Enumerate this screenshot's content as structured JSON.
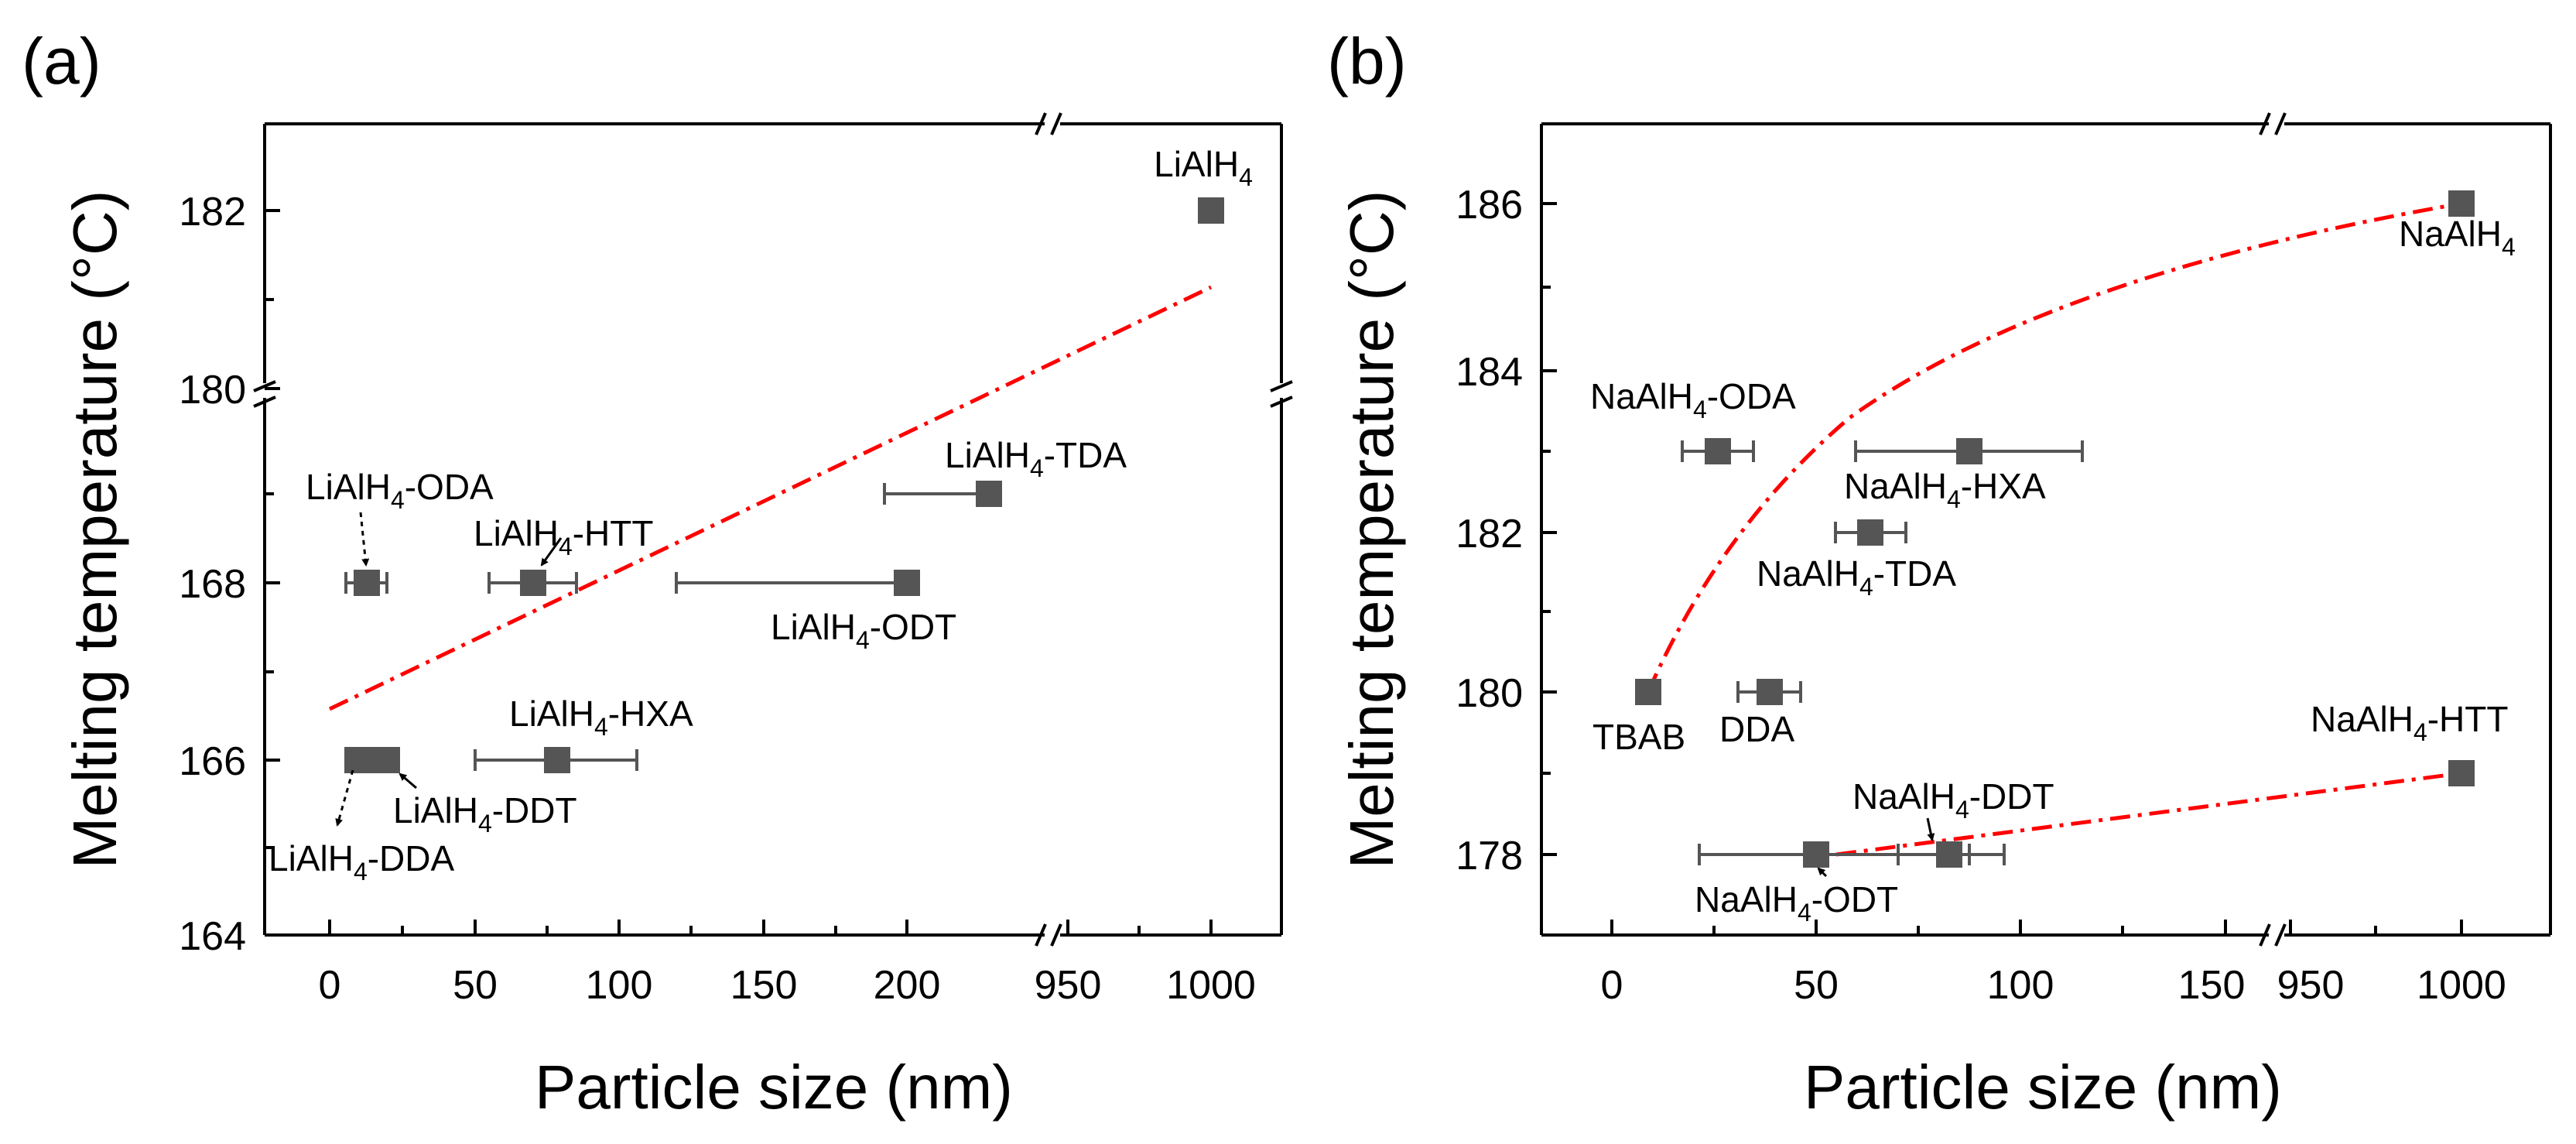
{
  "chart_data": [
    {
      "type": "scatter",
      "panel": "(a)",
      "xlabel": "Particle size (nm)",
      "ylabel": "Melting temperature (°C)",
      "x_tick_labels": [
        "0",
        "50",
        "100",
        "150",
        "200",
        "950",
        "1000"
      ],
      "y_tick_labels": [
        "164",
        "166",
        "168",
        "180",
        "182"
      ],
      "x_segments": [
        {
          "range": [
            -25,
            230
          ]
        },
        {
          "range": [
            940,
            1010
          ]
        }
      ],
      "y_segments": [
        {
          "range": [
            164,
            169.6
          ]
        },
        {
          "range": [
            179.8,
            183.3
          ]
        }
      ],
      "points": [
        {
          "label": "LiAlH4",
          "x": 1000,
          "y": 182,
          "xerr": 0
        },
        {
          "label": "LiAlH4-TDA",
          "x": 228,
          "y": 169,
          "xerr": 18
        },
        {
          "label": "LiAlH4-ODA",
          "x": 14,
          "y": 168,
          "xerr": 7
        },
        {
          "label": "LiAlH4-HTT",
          "x": 72,
          "y": 168,
          "xerr": 15
        },
        {
          "label": "LiAlH4-ODT",
          "x": 200,
          "y": 168,
          "xerr": 78
        },
        {
          "label": "LiAlH4-HXA",
          "x": 80,
          "y": 166,
          "xerr": 28
        },
        {
          "label": "LiAlH4-DDA",
          "x": 10,
          "y": 166,
          "xerr": 0
        },
        {
          "label": "LiAlH4-DDT",
          "x": 20,
          "y": 166,
          "xerr": 0
        }
      ],
      "fit_line": "linear trend (red dash-dot)"
    },
    {
      "type": "scatter",
      "panel": "(b)",
      "xlabel": "Particle size (nm)",
      "ylabel": "Melting temperature (°C)",
      "x_tick_labels": [
        "0",
        "50",
        "100",
        "150",
        "950",
        "1000"
      ],
      "y_tick_labels": [
        "178",
        "180",
        "182",
        "184",
        "186"
      ],
      "x_segments": [
        {
          "range": [
            -25,
            170
          ]
        },
        {
          "range": [
            935,
            1015
          ]
        }
      ],
      "y_range": [
        177,
        187
      ],
      "points": [
        {
          "label": "NaAlH4",
          "x": 1000,
          "y": 186,
          "xerr": 0
        },
        {
          "label": "NaAlH4-ODA",
          "x": 26,
          "y": 183,
          "xerr": 9
        },
        {
          "label": "NaAlH4-HXA",
          "x": 88,
          "y": 183,
          "xerr": 27
        },
        {
          "label": "NaAlH4-TDA",
          "x": 63,
          "y": 182,
          "xerr": 9
        },
        {
          "label": "TBAB",
          "x": 9,
          "y": 180,
          "xerr": 0
        },
        {
          "label": "DDA",
          "x": 39,
          "y": 180,
          "xerr": 8
        },
        {
          "label": "NaAlH4-HTT",
          "x": 1000,
          "y": 179,
          "xerr": 0
        },
        {
          "label": "NaAlH4-DDT",
          "x": 83,
          "y": 178,
          "xerr": 13
        },
        {
          "label": "NaAlH4-ODT",
          "x": 55,
          "y": 178,
          "xerr": 33
        }
      ],
      "fit_lines": [
        "upper curve TBAB to NaAlH4 (red dash-dot)",
        "lower line NaAlH4-ODT to NaAlH4-HTT (red dash-dot)"
      ]
    }
  ],
  "labels": {
    "a": {
      "panel": "(a)",
      "xlabel": "Particle size (nm)",
      "ylabel": "Melting temperature (°C)",
      "xticks": [
        "0",
        "50",
        "100",
        "150",
        "200",
        "950",
        "1000"
      ],
      "yticks": [
        "164",
        "166",
        "168",
        "180",
        "182"
      ],
      "pt_lialh4": {
        "base": "LiAlH",
        "sub": "4",
        "suffix": ""
      },
      "pt_tda": {
        "base": "LiAlH",
        "sub": "4",
        "suffix": "-TDA"
      },
      "pt_oda": {
        "base": "LiAlH",
        "sub": "4",
        "suffix": "-ODA"
      },
      "pt_htt": {
        "base": "LiAlH",
        "sub": "4",
        "suffix": "-HTT"
      },
      "pt_odt": {
        "base": "LiAlH",
        "sub": "4",
        "suffix": "-ODT"
      },
      "pt_hxa": {
        "base": "LiAlH",
        "sub": "4",
        "suffix": "-HXA"
      },
      "pt_ddt": {
        "base": "LiAlH",
        "sub": "4",
        "suffix": "-DDT"
      },
      "pt_dda": {
        "base": "LiAlH",
        "sub": "4",
        "suffix": "-DDA"
      }
    },
    "b": {
      "panel": "(b)",
      "xlabel": "Particle size (nm)",
      "ylabel": "Melting temperature (°C)",
      "xticks": [
        "0",
        "50",
        "100",
        "150",
        "950",
        "1000"
      ],
      "yticks": [
        "178",
        "180",
        "182",
        "184",
        "186"
      ],
      "pt_naalh4": {
        "base": "NaAlH",
        "sub": "4",
        "suffix": ""
      },
      "pt_oda": {
        "base": "NaAlH",
        "sub": "4",
        "suffix": "-ODA"
      },
      "pt_hxa": {
        "base": "NaAlH",
        "sub": "4",
        "suffix": "-HXA"
      },
      "pt_tda": {
        "base": "NaAlH",
        "sub": "4",
        "suffix": "-TDA"
      },
      "pt_tbab": "TBAB",
      "pt_dda": "DDA",
      "pt_htt": {
        "base": "NaAlH",
        "sub": "4",
        "suffix": "-HTT"
      },
      "pt_ddt": {
        "base": "NaAlH",
        "sub": "4",
        "suffix": "-DDT"
      },
      "pt_odt": {
        "base": "NaAlH",
        "sub": "4",
        "suffix": "-ODT"
      }
    }
  },
  "colors": {
    "marker": "#555555",
    "errorbar": "#555555",
    "fit_line": "#ff0000",
    "axis": "#000000"
  }
}
